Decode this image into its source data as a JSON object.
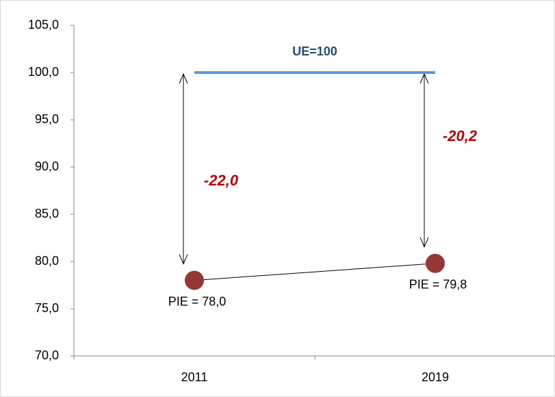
{
  "chart_data": {
    "type": "line",
    "categories": [
      "2011",
      "2019"
    ],
    "series": [
      {
        "name": "UE=100",
        "color": "#5b9bd5",
        "values": [
          100,
          100
        ]
      },
      {
        "color": "#953735",
        "values": [
          78.0,
          79.8
        ],
        "value_labels": [
          "PIE = 78,0",
          "PIE = 79,8"
        ]
      }
    ],
    "gaps": {
      "values": [
        -22.0,
        -20.2
      ],
      "value_labels": [
        "-22,0",
        "-20,2"
      ],
      "color": "#c00000"
    },
    "ylim": [
      70,
      105
    ],
    "yticks": [
      {
        "value": 70,
        "label": "70,0"
      },
      {
        "value": 75,
        "label": "75,0"
      },
      {
        "value": 80,
        "label": "80,0"
      },
      {
        "value": 85,
        "label": "85,0"
      },
      {
        "value": 90,
        "label": "90,0"
      },
      {
        "value": 95,
        "label": "95,0"
      },
      {
        "value": 100,
        "label": "100,0"
      },
      {
        "value": 105,
        "label": "105,0"
      }
    ],
    "grid": false
  }
}
